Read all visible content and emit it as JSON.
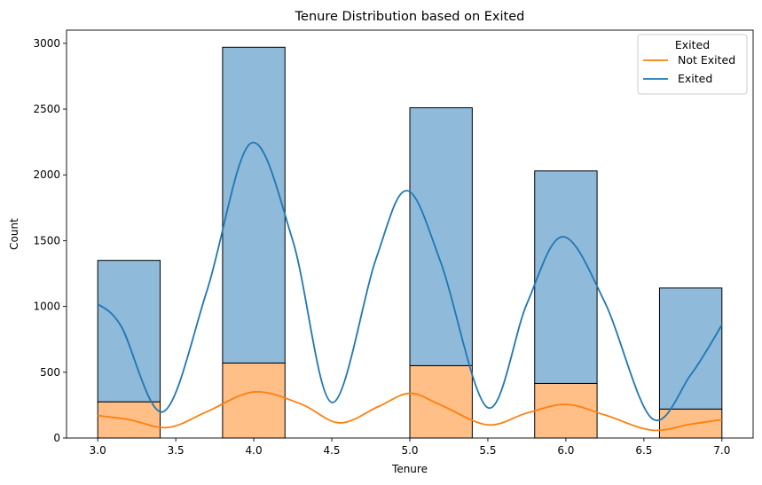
{
  "chart_data": {
    "type": "bar",
    "stacked": true,
    "title": "Tenure Distribution based on Exited",
    "xlabel": "Tenure",
    "ylabel": "Count",
    "xlim": [
      2.8,
      7.2
    ],
    "ylim": [
      0,
      3100
    ],
    "x_ticks": [
      3.0,
      3.5,
      4.0,
      4.5,
      5.0,
      5.5,
      6.0,
      6.5,
      7.0
    ],
    "x_tick_labels": [
      "3.0",
      "3.5",
      "4.0",
      "4.5",
      "5.0",
      "5.5",
      "6.0",
      "6.5",
      "7.0"
    ],
    "y_ticks": [
      0,
      500,
      1000,
      1500,
      2000,
      2500,
      3000
    ],
    "y_tick_labels": [
      "0",
      "500",
      "1000",
      "1500",
      "2000",
      "2500",
      "3000"
    ],
    "bins": [
      [
        3.0,
        3.4
      ],
      [
        3.8,
        4.2
      ],
      [
        5.0,
        5.4
      ],
      [
        5.8,
        6.2
      ],
      [
        6.6,
        7.0
      ]
    ],
    "legend": {
      "title": "Exited",
      "placement": "top-right",
      "entries": [
        "Not Exited",
        "Exited"
      ]
    },
    "series": [
      {
        "name": "Not Exited",
        "color": "#ff7f0e",
        "fill": "#ffbf86",
        "values": [
          275,
          570,
          550,
          415,
          220
        ],
        "kde": [
          [
            3.0,
            170
          ],
          [
            3.2,
            140
          ],
          [
            3.45,
            80
          ],
          [
            3.7,
            200
          ],
          [
            4.0,
            350
          ],
          [
            4.3,
            260
          ],
          [
            4.55,
            115
          ],
          [
            4.8,
            240
          ],
          [
            5.0,
            340
          ],
          [
            5.2,
            250
          ],
          [
            5.5,
            100
          ],
          [
            5.75,
            190
          ],
          [
            6.0,
            255
          ],
          [
            6.25,
            175
          ],
          [
            6.55,
            60
          ],
          [
            6.8,
            105
          ],
          [
            7.0,
            140
          ]
        ]
      },
      {
        "name": "Exited",
        "color": "#1f77b4",
        "fill": "#8fbada",
        "values": [
          1075,
          2400,
          1960,
          1615,
          920
        ],
        "kde": [
          [
            3.0,
            1020
          ],
          [
            3.15,
            850
          ],
          [
            3.42,
            200
          ],
          [
            3.7,
            1120
          ],
          [
            3.98,
            2240
          ],
          [
            4.25,
            1500
          ],
          [
            4.5,
            270
          ],
          [
            4.78,
            1350
          ],
          [
            4.98,
            1880
          ],
          [
            5.2,
            1330
          ],
          [
            5.5,
            230
          ],
          [
            5.75,
            1020
          ],
          [
            5.98,
            1530
          ],
          [
            6.25,
            1030
          ],
          [
            6.55,
            150
          ],
          [
            6.8,
            480
          ],
          [
            7.0,
            860
          ]
        ]
      }
    ]
  }
}
